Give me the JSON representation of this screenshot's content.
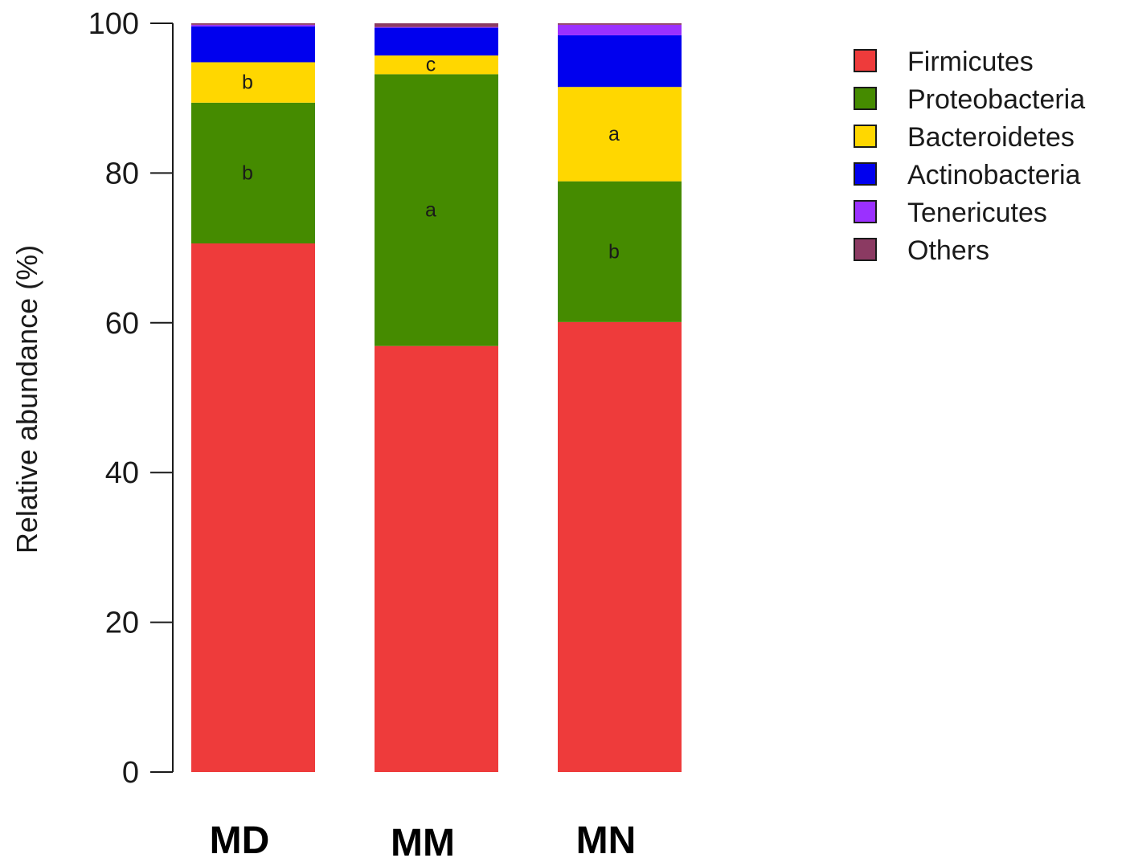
{
  "chart_data": {
    "type": "bar",
    "stacked": true,
    "categories": [
      "MD",
      "MM",
      "MN"
    ],
    "ylabel": "Relative abundance (%)",
    "xlabel": "",
    "ylim": [
      0,
      100
    ],
    "yticks": [
      0,
      20,
      40,
      60,
      80,
      100
    ],
    "legend_position": "top-right",
    "series": [
      {
        "name": "Firmicutes",
        "color": "#ee3b3b",
        "values": [
          70.6,
          56.9,
          60.1
        ],
        "labels": [
          "",
          "",
          ""
        ]
      },
      {
        "name": "Proteobacteria",
        "color": "#458b00",
        "values": [
          18.8,
          36.3,
          18.8
        ],
        "labels": [
          "b",
          "a",
          "b"
        ]
      },
      {
        "name": "Bacteroidetes",
        "color": "#ffd700",
        "values": [
          5.4,
          2.5,
          12.6
        ],
        "labels": [
          "b",
          "c",
          "a"
        ]
      },
      {
        "name": "Actinobacteria",
        "color": "#0000ee",
        "values": [
          4.8,
          3.7,
          6.9
        ],
        "labels": [
          "",
          "",
          ""
        ]
      },
      {
        "name": "Tenericutes",
        "color": "#9b30ff",
        "values": [
          0.2,
          0.1,
          1.4
        ],
        "labels": [
          "",
          "",
          ""
        ]
      },
      {
        "name": "Others",
        "color": "#8b3a62",
        "values": [
          0.2,
          0.5,
          0.2
        ],
        "labels": [
          "",
          "",
          ""
        ]
      }
    ]
  }
}
